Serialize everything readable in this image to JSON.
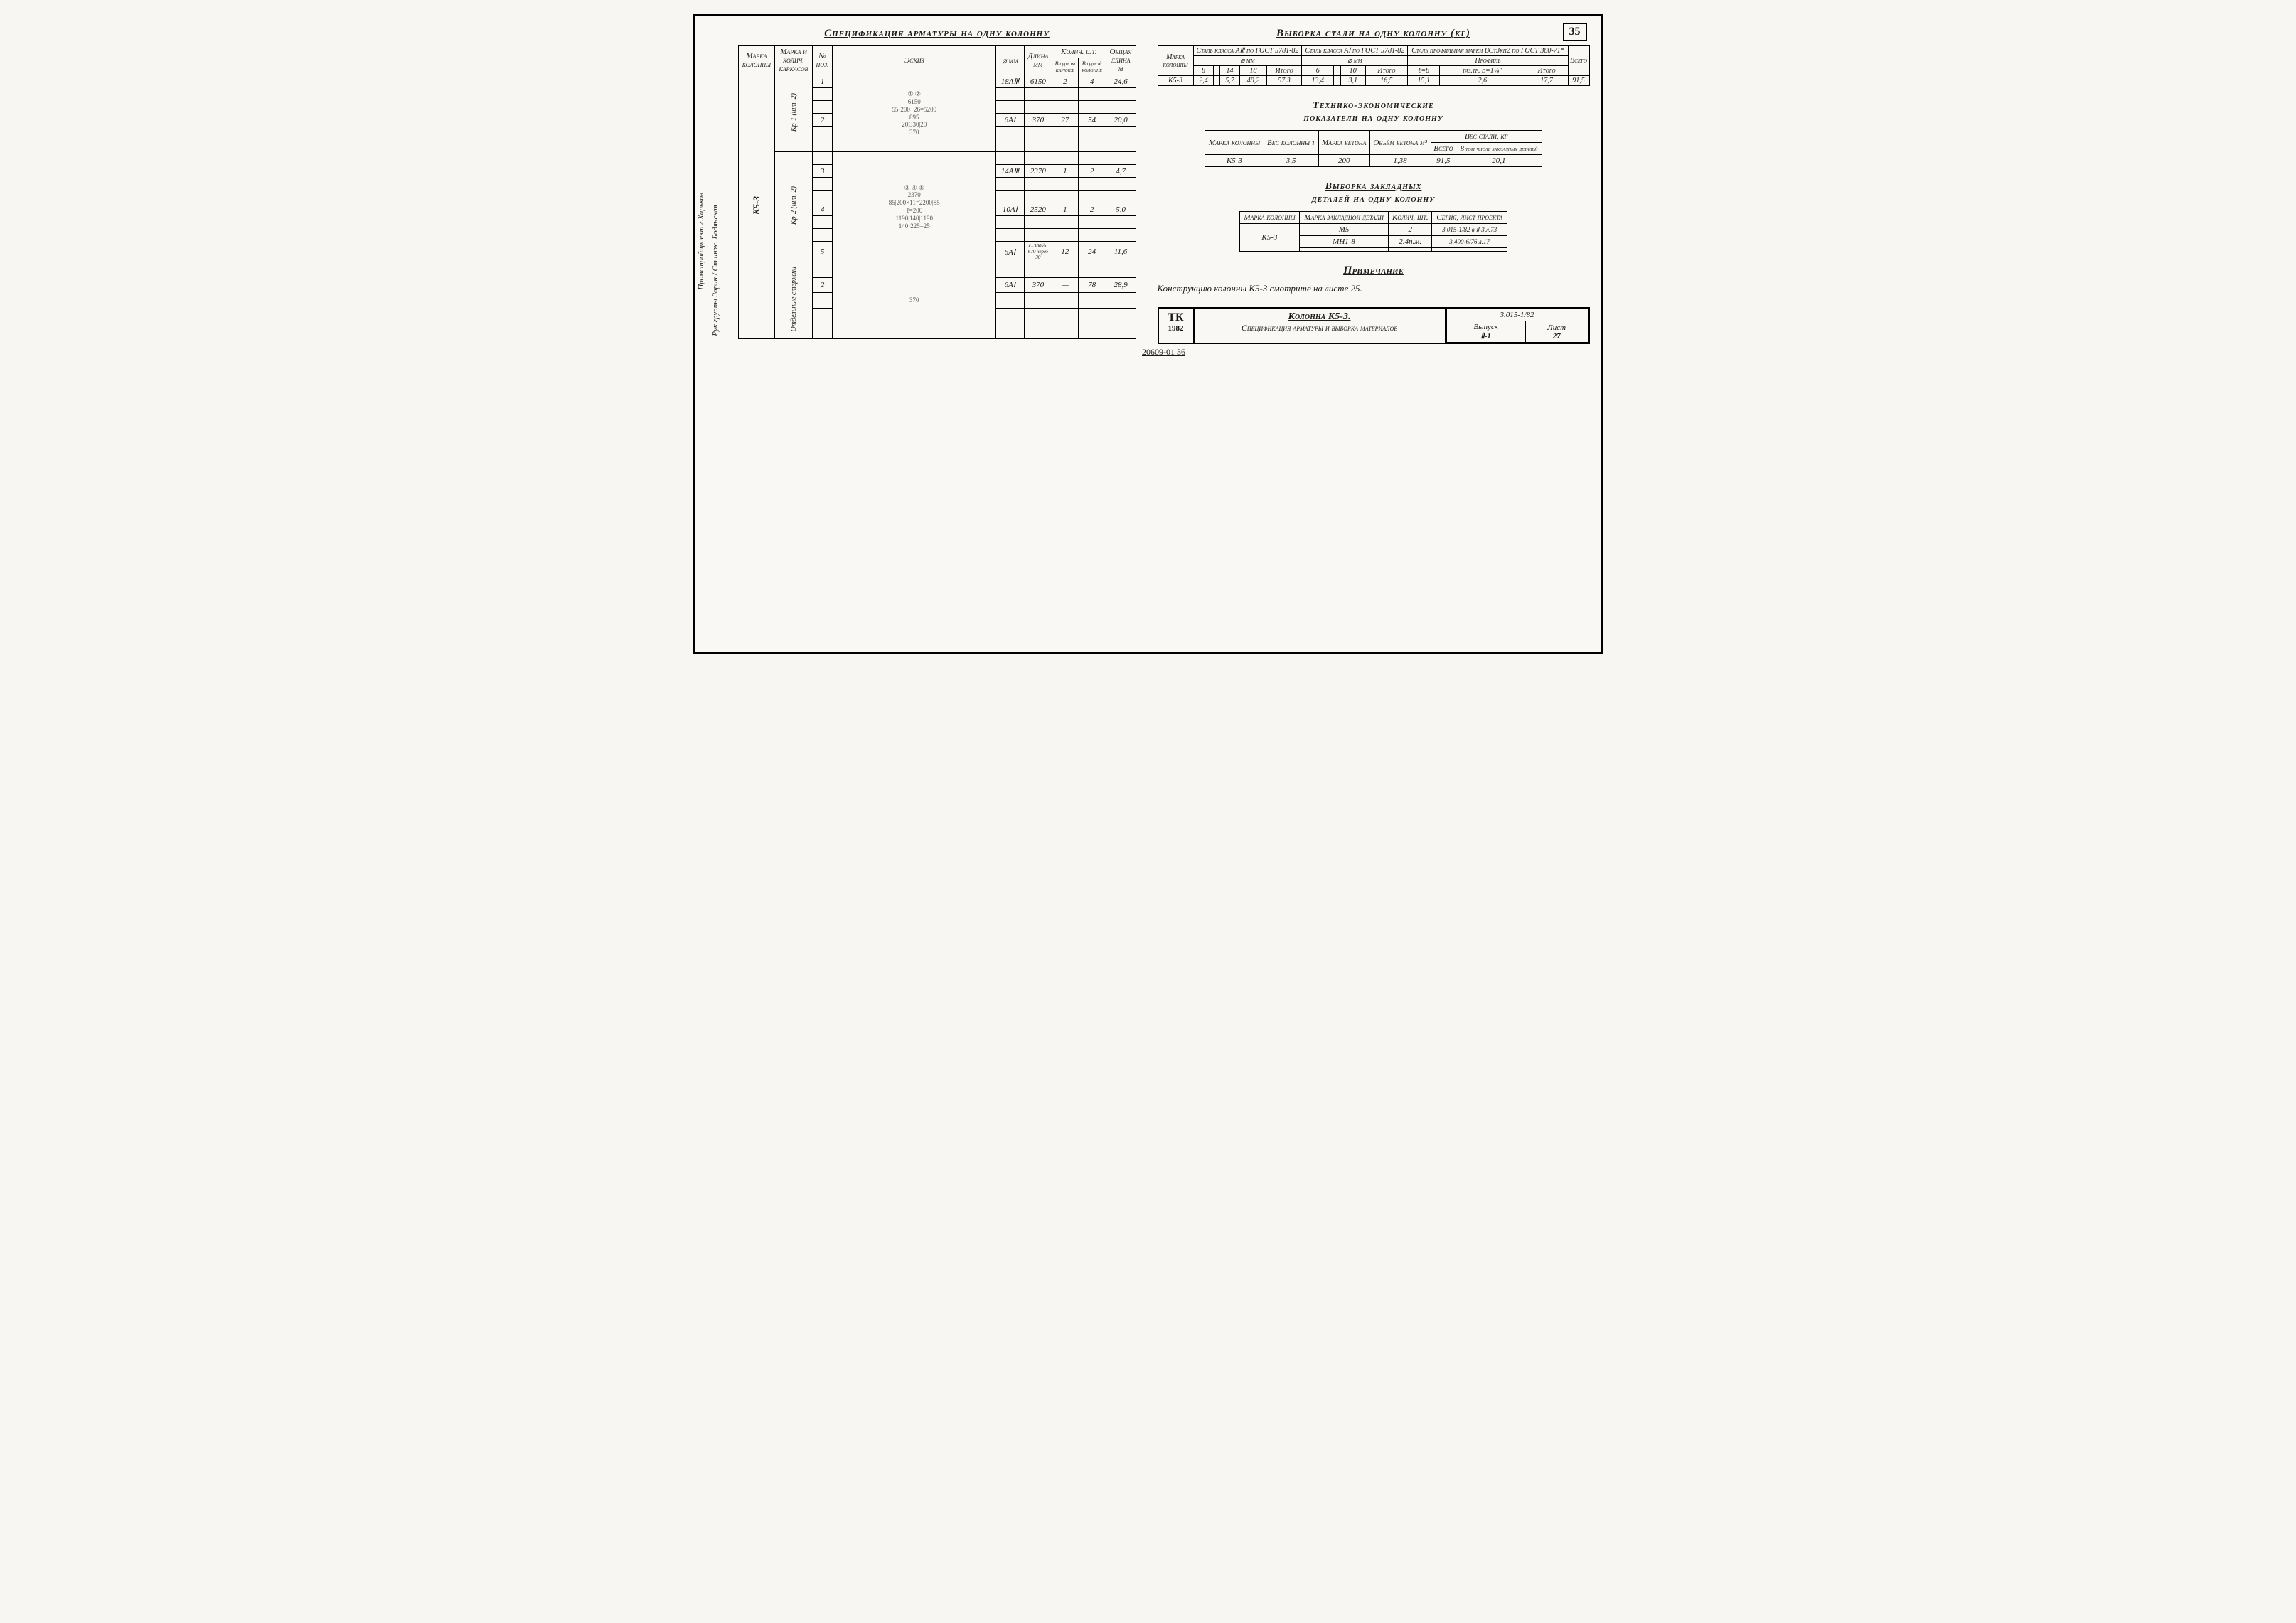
{
  "page_number": "35",
  "side_text_1": "Промстройпроект г.Харьков",
  "side_text_2": "Рук.группы Зорин / Ст.инж. Бодянская",
  "left": {
    "title": "Спецификация арматуры на одну колонну",
    "headers": {
      "mark_col": "Марка колонны",
      "mark_frame": "Марка и колич. каркасов",
      "pos": "№ поз.",
      "sketch": "Эскиз",
      "diam": "⌀ мм",
      "len": "Длина мм",
      "qty": "Колич. шт.",
      "qty_frame": "В одном каркасе",
      "qty_col": "В одной колонне",
      "total_len": "Общая длина м"
    },
    "column_mark": "К5-3",
    "groups": [
      {
        "frame": "Кр-1 (шт. 2)",
        "sketch_dims": "6150 / 55·200+26=5200 / 895 / 20|330|20 / 370",
        "sketch_callouts": "① ②",
        "rows": [
          {
            "pos": "1",
            "d": "18AⅢ",
            "len": "6150",
            "qf": "2",
            "qc": "4",
            "tl": "24,6"
          },
          {
            "pos": "",
            "d": "",
            "len": "",
            "qf": "",
            "qc": "",
            "tl": ""
          },
          {
            "pos": "",
            "d": "",
            "len": "",
            "qf": "",
            "qc": "",
            "tl": ""
          },
          {
            "pos": "2",
            "d": "6AⅠ",
            "len": "370",
            "qf": "27",
            "qc": "54",
            "tl": "20,0"
          },
          {
            "pos": "",
            "d": "",
            "len": "",
            "qf": "",
            "qc": "",
            "tl": ""
          },
          {
            "pos": "",
            "d": "",
            "len": "",
            "qf": "",
            "qc": "",
            "tl": ""
          }
        ]
      },
      {
        "frame": "Кр-2 (шт. 2)",
        "sketch_dims": "2370 / 85|200×11=2200|85 / ℓ=200 / 1190|140|1190 / 140·225=25",
        "sketch_callouts": "③ ④ ⑤",
        "rows": [
          {
            "pos": "",
            "d": "",
            "len": "",
            "qf": "",
            "qc": "",
            "tl": ""
          },
          {
            "pos": "3",
            "d": "14AⅢ",
            "len": "2370",
            "qf": "1",
            "qc": "2",
            "tl": "4,7"
          },
          {
            "pos": "",
            "d": "",
            "len": "",
            "qf": "",
            "qc": "",
            "tl": ""
          },
          {
            "pos": "",
            "d": "",
            "len": "",
            "qf": "",
            "qc": "",
            "tl": ""
          },
          {
            "pos": "4",
            "d": "10AⅠ",
            "len": "2520",
            "qf": "1",
            "qc": "2",
            "tl": "5,0"
          },
          {
            "pos": "",
            "d": "",
            "len": "",
            "qf": "",
            "qc": "",
            "tl": ""
          },
          {
            "pos": "",
            "d": "",
            "len": "",
            "qf": "",
            "qc": "",
            "tl": ""
          },
          {
            "pos": "5",
            "d": "6AⅠ",
            "len": "ℓ=300 до 670 через 30",
            "qf": "12",
            "qc": "24",
            "tl": "11,6"
          }
        ]
      },
      {
        "frame": "Отдельные стержни",
        "sketch_dims": "370",
        "sketch_callouts": "",
        "rows": [
          {
            "pos": "",
            "d": "",
            "len": "",
            "qf": "",
            "qc": "",
            "tl": ""
          },
          {
            "pos": "2",
            "d": "6AⅠ",
            "len": "370",
            "qf": "—",
            "qc": "78",
            "tl": "28,9"
          },
          {
            "pos": "",
            "d": "",
            "len": "",
            "qf": "",
            "qc": "",
            "tl": ""
          },
          {
            "pos": "",
            "d": "",
            "len": "",
            "qf": "",
            "qc": "",
            "tl": ""
          },
          {
            "pos": "",
            "d": "",
            "len": "",
            "qf": "",
            "qc": "",
            "tl": ""
          }
        ]
      }
    ]
  },
  "steel": {
    "title": "Выборка стали на одну колонну (кг)",
    "h_mark": "Марка колонны",
    "grp1": "Сталь класса AⅢ по ГОСТ 5781-82",
    "grp2": "Сталь класса AⅠ по ГОСТ 5781-82",
    "grp3": "Сталь профильная марки ВСт3кп2 по ГОСТ 380-71*",
    "sub_d": "⌀ мм",
    "sub_prof": "Профиль",
    "cols1": [
      "8",
      "",
      "14",
      "18",
      "Итого"
    ],
    "cols2": [
      "6",
      "",
      "10",
      "Итого"
    ],
    "cols3": [
      "ℓ=8",
      "газ.тр. d=1¼″",
      "Итого"
    ],
    "total": "Всего",
    "row": {
      "mark": "К5-3",
      "v": [
        "2,4",
        "",
        "5,7",
        "49,2",
        "57,3",
        "13,4",
        "",
        "3,1",
        "16,5",
        "15,1",
        "2,6",
        "17,7",
        "91,5"
      ]
    }
  },
  "tech": {
    "title1": "Технико-экономические",
    "title2": "показатели на одну колонну",
    "h": [
      "Марка колонны",
      "Вес колонны т",
      "Марка бетона",
      "Объём бетона м³",
      "Вес стали, кг"
    ],
    "sub": [
      "Всего",
      "В том числе закладных деталей"
    ],
    "row": [
      "К5-3",
      "3,5",
      "200",
      "1,38",
      "91,5",
      "20,1"
    ]
  },
  "embed": {
    "title1": "Выборка закладных",
    "title2": "деталей на одну колонну",
    "h": [
      "Марка колонны",
      "Марка закладной детали",
      "Колич. шт.",
      "Серия, лист проекта"
    ],
    "rows": [
      [
        "К5-3",
        "М5",
        "2",
        "3.015-1/82 в.Ⅱ-3,л.73"
      ],
      [
        "",
        "МН1-8",
        "2.4п.м.",
        "3.400-6/76 л.17"
      ],
      [
        "",
        "",
        "",
        ""
      ]
    ]
  },
  "note_title": "Примечание",
  "note_text": "Конструкцию колонны К5-3 смотрите на листе 25.",
  "title_block": {
    "logo1": "ТК",
    "logo2": "1982",
    "line1": "Колонна К5-3.",
    "line2": "Спецификация арматуры и выборка материалов",
    "series": "3.015-1/82",
    "issue_lbl": "Выпуск",
    "issue": "Ⅱ-1",
    "sheet_lbl": "Лист",
    "sheet": "27"
  },
  "footer": "20609-01   36"
}
